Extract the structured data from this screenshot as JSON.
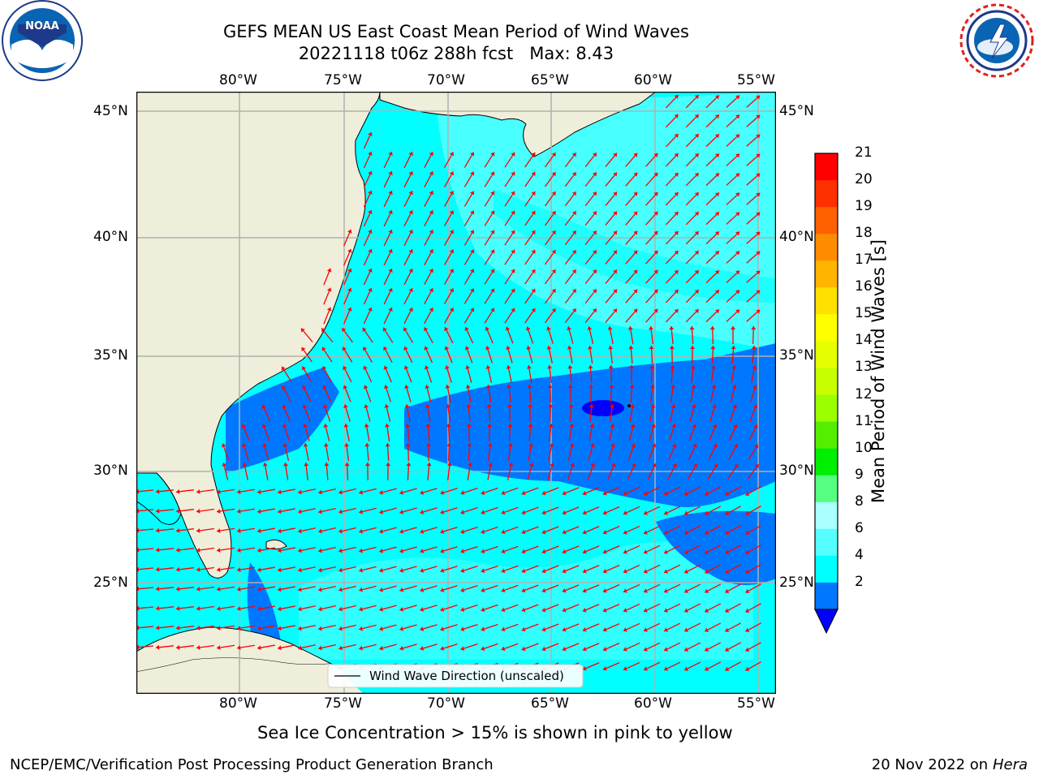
{
  "header": {
    "title": "GEFS MEAN US East Coast Mean Period of Wind Waves",
    "subtitle": "20221118 t06z 288h fcst   Max: 8.43",
    "noaa_logo_text": "NOAA",
    "nws_logo_text": "NATIONAL WEATHER SERVICE"
  },
  "map": {
    "lon_labels": [
      "80°W",
      "75°W",
      "70°W",
      "65°W",
      "60°W",
      "55°W"
    ],
    "lat_labels": [
      "45°N",
      "40°N",
      "35°N",
      "30°N",
      "25°N"
    ],
    "legend_label": "Wind Wave Direction (unscaled)",
    "colors": {
      "land": "#efeedb",
      "ocean_4_6": "#00ffff",
      "ocean_6_8": "#55ffff",
      "ocean_2_4": "#0077ff",
      "ocean_lt_2": "#0000ff",
      "arrow": "#ff0000"
    }
  },
  "colorbar": {
    "title": "Mean Period of Wind Waves [s]",
    "ticks": [
      "21",
      "20",
      "19",
      "18",
      "17",
      "16",
      "15",
      "14",
      "13",
      "12",
      "11",
      "10",
      "9",
      "8",
      "6",
      "4",
      "2"
    ],
    "colors": [
      "#ff0000",
      "#ff3000",
      "#ff6000",
      "#ff8c00",
      "#ffb400",
      "#ffe000",
      "#ffff00",
      "#e6ff00",
      "#c8ff00",
      "#9bff00",
      "#55ee00",
      "#00ee00",
      "#55ff80",
      "#aaffff",
      "#55ffff",
      "#00ffff",
      "#0077ff"
    ],
    "under_color": "#0000ff"
  },
  "footer": {
    "note": "Sea Ice Concentration > 15% is shown in pink to yellow",
    "credit": "NCEP/EMC/Verification Post Processing Product Generation Branch",
    "date": "20 Nov 2022 on",
    "host": "Hera"
  }
}
